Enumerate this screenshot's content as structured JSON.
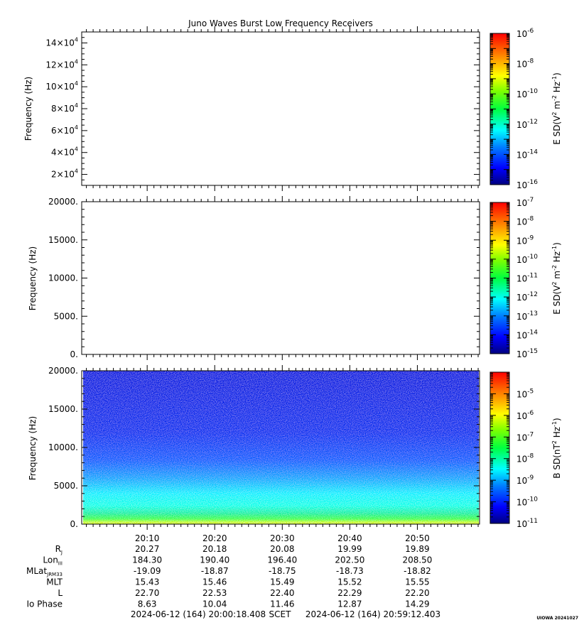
{
  "title": "Juno Waves Burst Low Frequency Receivers",
  "chart_data": [
    {
      "type": "heatmap",
      "panel": "top",
      "ylabel": "Frequency (Hz)",
      "ytick_labels": [
        "2×10^4",
        "4×10^4",
        "6×10^4",
        "8×10^4",
        "10×10^4",
        "12×10^4",
        "14×10^4"
      ],
      "yticks": [
        20000,
        40000,
        60000,
        80000,
        100000,
        120000,
        140000
      ],
      "ylim": [
        10000,
        150000
      ],
      "data": "no data (blank)",
      "colorbar": {
        "label": "E SD(V^2 m^-2 Hz^-1)",
        "scale": "log",
        "range": [
          1e-16,
          1e-06
        ],
        "tick_labels": [
          {
            "base": "10",
            "exp": "-6"
          },
          {
            "base": "10",
            "exp": "-8"
          },
          {
            "base": "10",
            "exp": "-10"
          },
          {
            "base": "10",
            "exp": "-12"
          },
          {
            "base": "10",
            "exp": "-14"
          },
          {
            "base": "10",
            "exp": "-16"
          }
        ]
      }
    },
    {
      "type": "heatmap",
      "panel": "middle",
      "ylabel": "Frequency (Hz)",
      "ytick_labels": [
        "0.",
        "5000.",
        "10000.",
        "15000.",
        "20000."
      ],
      "yticks": [
        0,
        5000,
        10000,
        15000,
        20000
      ],
      "ylim": [
        0,
        20000
      ],
      "data": "no data (blank)",
      "colorbar": {
        "label": "E SD(V^2 m^-2 Hz^-1)",
        "scale": "log",
        "range": [
          1e-15,
          1e-07
        ],
        "tick_labels": [
          {
            "base": "10",
            "exp": "-7"
          },
          {
            "base": "10",
            "exp": "-8"
          },
          {
            "base": "10",
            "exp": "-9"
          },
          {
            "base": "10",
            "exp": "-10"
          },
          {
            "base": "10",
            "exp": "-11"
          },
          {
            "base": "10",
            "exp": "-12"
          },
          {
            "base": "10",
            "exp": "-13"
          },
          {
            "base": "10",
            "exp": "-14"
          },
          {
            "base": "10",
            "exp": "-15"
          }
        ]
      }
    },
    {
      "type": "heatmap",
      "panel": "bottom",
      "ylabel": "Frequency (Hz)",
      "ytick_labels": [
        "0.",
        "5000.",
        "10000.",
        "15000.",
        "20000."
      ],
      "yticks": [
        0,
        5000,
        10000,
        15000,
        20000
      ],
      "ylim": [
        0,
        20000
      ],
      "data": "B-field spectral density, strongest (green/yellow) near 0 Hz, cyan up to about 6000 Hz, blue above",
      "colorbar": {
        "label": "B SD(nT^2 Hz^-1)",
        "scale": "log",
        "range": [
          1e-11,
          0.0001
        ],
        "tick_labels": [
          {
            "base": "10",
            "exp": "-5"
          },
          {
            "base": "10",
            "exp": "-6"
          },
          {
            "base": "10",
            "exp": "-7"
          },
          {
            "base": "10",
            "exp": "-8"
          },
          {
            "base": "10",
            "exp": "-9"
          },
          {
            "base": "10",
            "exp": "-10"
          },
          {
            "base": "10",
            "exp": "-11"
          }
        ]
      },
      "xtick_labels": [
        "20:10",
        "20:20",
        "20:30",
        "20:40",
        "20:50"
      ]
    }
  ],
  "ephemeris": {
    "rows": [
      {
        "label": "R",
        "sub": "J",
        "values": [
          "20.27",
          "20.18",
          "20.08",
          "19.99",
          "19.89"
        ]
      },
      {
        "label": "Lon",
        "sub": "III",
        "values": [
          "184.30",
          "190.40",
          "196.40",
          "202.50",
          "208.50"
        ]
      },
      {
        "label": "MLat",
        "sub": "JRM33",
        "values": [
          "-19.09",
          "-18.87",
          "-18.75",
          "-18.73",
          "-18.82"
        ]
      },
      {
        "label": "MLT",
        "sub": "",
        "values": [
          "15.43",
          "15.46",
          "15.49",
          "15.52",
          "15.55"
        ]
      },
      {
        "label": "L",
        "sub": "",
        "values": [
          "22.70",
          "22.53",
          "22.40",
          "22.29",
          "22.20"
        ]
      },
      {
        "label": "Io Phase",
        "sub": "",
        "values": [
          "8.63",
          "10.04",
          "11.46",
          "12.87",
          "14.29"
        ]
      }
    ]
  },
  "footer": {
    "start": "2024-06-12 (164) 20:00:18.408",
    "scet": "SCET",
    "end": "2024-06-12 (164) 20:59:12.403",
    "credit": "UIOWA 20241027"
  }
}
